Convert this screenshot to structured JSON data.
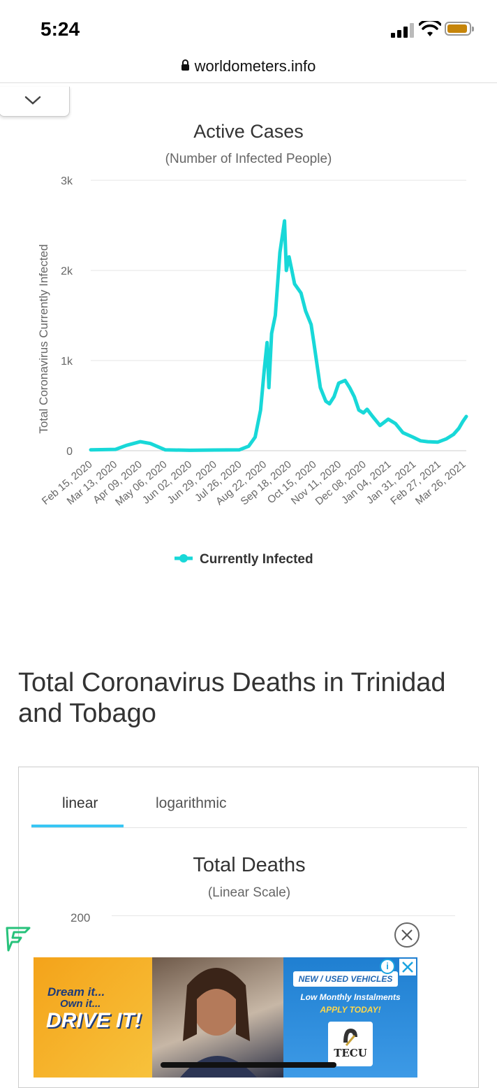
{
  "status_bar": {
    "time": "5:24"
  },
  "browser": {
    "url": "worldometers.info"
  },
  "chart_data": [
    {
      "type": "line",
      "title": "Active Cases",
      "subtitle": "(Number of Infected People)",
      "ylabel": "Total Coronavirus Currently Infected",
      "xlabel": "",
      "ylim": [
        0,
        3000
      ],
      "yticks": [
        0,
        1000,
        2000,
        3000
      ],
      "ytick_labels": [
        "0",
        "1k",
        "2k",
        "3k"
      ],
      "xtick_labels": [
        "Feb 15, 2020",
        "Mar 13, 2020",
        "Apr 09, 2020",
        "May 06, 2020",
        "Jun 02, 2020",
        "Jun 29, 2020",
        "Jul 26, 2020",
        "Aug 22, 2020",
        "Sep 18, 2020",
        "Oct 15, 2020",
        "Nov 11, 2020",
        "Dec 08, 2020",
        "Jan 04, 2021",
        "Jan 31, 2021",
        "Feb 27, 2021",
        "Mar 26, 2021"
      ],
      "legend": "bottom",
      "grid": true,
      "color": "#18d8d8",
      "series": [
        {
          "name": "Currently Infected",
          "x": [
            "2020-02-15",
            "2020-03-13",
            "2020-03-25",
            "2020-04-09",
            "2020-04-20",
            "2020-05-06",
            "2020-06-02",
            "2020-06-29",
            "2020-07-26",
            "2020-08-05",
            "2020-08-12",
            "2020-08-18",
            "2020-08-22",
            "2020-08-25",
            "2020-08-27",
            "2020-08-30",
            "2020-09-03",
            "2020-09-08",
            "2020-09-13",
            "2020-09-15",
            "2020-09-17",
            "2020-09-18",
            "2020-09-21",
            "2020-09-24",
            "2020-10-01",
            "2020-10-06",
            "2020-10-12",
            "2020-10-15",
            "2020-10-22",
            "2020-10-28",
            "2020-11-01",
            "2020-11-06",
            "2020-11-11",
            "2020-11-18",
            "2020-11-23",
            "2020-11-28",
            "2020-12-03",
            "2020-12-08",
            "2020-12-12",
            "2020-12-18",
            "2020-12-26",
            "2021-01-04",
            "2021-01-12",
            "2021-01-20",
            "2021-01-31",
            "2021-02-08",
            "2021-02-16",
            "2021-02-27",
            "2021-03-08",
            "2021-03-16",
            "2021-03-22",
            "2021-03-26",
            "2021-03-30"
          ],
          "values": [
            10,
            15,
            60,
            100,
            80,
            10,
            5,
            8,
            10,
            50,
            150,
            450,
            900,
            1200,
            700,
            1300,
            1500,
            2200,
            2550,
            2000,
            2100,
            2150,
            2000,
            1850,
            1750,
            1550,
            1400,
            1200,
            700,
            550,
            520,
            600,
            750,
            780,
            700,
            600,
            450,
            420,
            460,
            380,
            280,
            350,
            300,
            200,
            150,
            110,
            100,
            95,
            130,
            180,
            250,
            320,
            380
          ]
        }
      ]
    },
    {
      "type": "line",
      "title": "Total Deaths",
      "subtitle": "(Linear Scale)",
      "yticks": [
        200
      ],
      "ytick_labels": [
        "200"
      ]
    }
  ],
  "deaths_section": {
    "heading": "Total Coronavirus Deaths in Trinidad and Tobago",
    "tabs": [
      {
        "label": "linear",
        "active": true
      },
      {
        "label": "logarithmic",
        "active": false
      }
    ]
  },
  "ad": {
    "line1": "Dream it...",
    "line2": "Own it...",
    "line3": "DRIVE IT!",
    "pill": "NEW / USED VEHICLES",
    "line4": "Low Monthly Instalments",
    "line5": "APPLY TODAY!",
    "logo_text": "TECU",
    "info_glyph": "i"
  }
}
